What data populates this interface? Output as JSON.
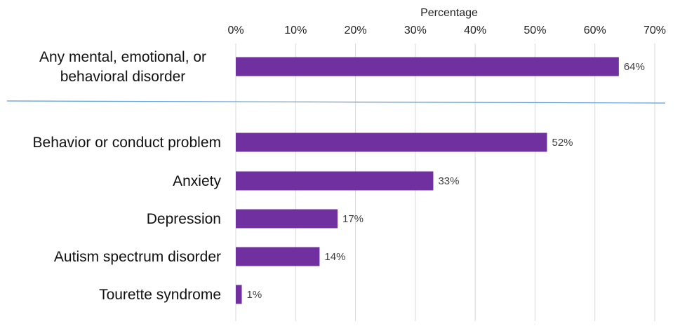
{
  "chart_data": {
    "type": "bar",
    "orientation": "horizontal",
    "title": "",
    "xlabel": "Percentage",
    "ylabel": "",
    "xlim": [
      0,
      70
    ],
    "tick_step": 10,
    "tick_suffix": "%",
    "x_axis_position": "top",
    "grid": "vertical",
    "legend": "none",
    "bar_color": "#7030a0",
    "grid_color": "#d9d9d9",
    "separator_color": "#5b9bd5",
    "groups": [
      {
        "categories": [
          {
            "lines": [
              "Any mental, emotional, or",
              "behavioral disorder"
            ],
            "value": 64,
            "label": "64%"
          }
        ]
      },
      {
        "categories": [
          {
            "lines": [
              "Behavior or conduct problem"
            ],
            "value": 52,
            "label": "52%"
          },
          {
            "lines": [
              "Anxiety"
            ],
            "value": 33,
            "label": "33%"
          },
          {
            "lines": [
              "Depression"
            ],
            "value": 17,
            "label": "17%"
          },
          {
            "lines": [
              "Autism spectrum disorder"
            ],
            "value": 14,
            "label": "14%"
          },
          {
            "lines": [
              "Tourette syndrome"
            ],
            "value": 1,
            "label": "1%"
          }
        ]
      }
    ]
  }
}
